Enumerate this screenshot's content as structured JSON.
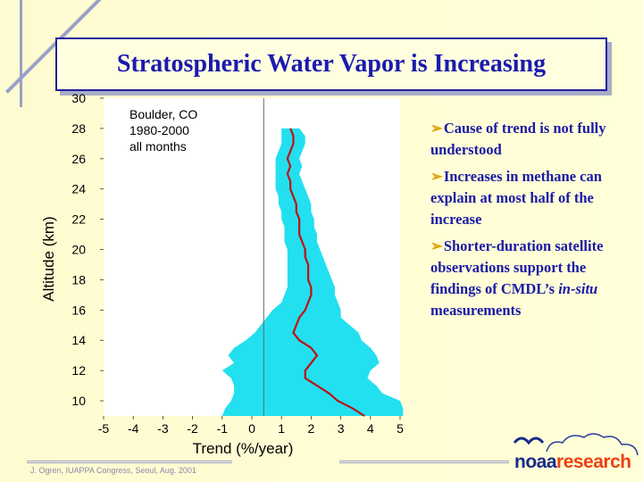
{
  "slide": {
    "title": "Stratospheric Water Vapor is Increasing",
    "footer": "J. Ogren, IUAPPA Congress, Seoul, Aug. 2001",
    "logo": {
      "noaa": "noaa",
      "research": "research"
    }
  },
  "bullets": [
    {
      "text": "Cause of trend is not fully understood"
    },
    {
      "text": "Increases in methane can explain at most half of the increase"
    },
    {
      "pre": "Shorter-duration satellite observations support the findings of CMDL’s ",
      "italic": "in-situ",
      "post": " measurements"
    }
  ],
  "colors": {
    "title": "#1a1ab0",
    "bullet_text": "#1a1aa8",
    "arrow": "#e0a000",
    "band": "#22e0f0",
    "trend_line": "#c01010"
  },
  "chart_data": {
    "type": "line",
    "annotation": [
      "Boulder, CO",
      "1980-2000",
      "all months"
    ],
    "xlabel": "Trend (%/year)",
    "ylabel": "Altitude (km)",
    "xlim": [
      -5,
      5
    ],
    "ylim": [
      9,
      30
    ],
    "x_ticks": [
      "-5",
      "-4",
      "-3",
      "-2",
      "-1",
      "0",
      "1",
      "2",
      "3",
      "4",
      "5"
    ],
    "y_ticks": [
      "10",
      "12",
      "14",
      "16",
      "18",
      "20",
      "22",
      "24",
      "26",
      "28",
      "30"
    ],
    "reference_line_x": 0.4,
    "series": [
      {
        "y": [
          28.0,
          27.5,
          27.0,
          26.5,
          26.0,
          25.5,
          25.0,
          24.5,
          24.0,
          23.5,
          23.0,
          22.5,
          22.0,
          21.5,
          21.0,
          20.5,
          20.0,
          19.5,
          19.0,
          18.5,
          18.0,
          17.5,
          17.0,
          16.5,
          16.0,
          15.5,
          15.0,
          14.5,
          14.0,
          13.5,
          13.0,
          12.5,
          12.0,
          11.5,
          11.0,
          10.5,
          10.0,
          9.5,
          9.0
        ],
        "center": [
          1.3,
          1.4,
          1.4,
          1.3,
          1.2,
          1.3,
          1.2,
          1.3,
          1.3,
          1.4,
          1.5,
          1.5,
          1.6,
          1.6,
          1.6,
          1.7,
          1.8,
          1.8,
          1.9,
          1.9,
          1.9,
          2.0,
          2.0,
          1.9,
          1.8,
          1.6,
          1.5,
          1.4,
          1.6,
          2.0,
          2.2,
          2.0,
          1.8,
          1.8,
          2.2,
          2.6,
          2.9,
          3.4,
          3.8
        ],
        "lower": [
          1.0,
          1.0,
          1.0,
          0.9,
          0.8,
          0.8,
          0.8,
          0.8,
          0.8,
          0.9,
          0.9,
          1.0,
          1.0,
          1.1,
          1.1,
          1.1,
          1.2,
          1.2,
          1.2,
          1.2,
          1.2,
          1.2,
          1.1,
          1.0,
          0.7,
          0.5,
          0.3,
          0.1,
          -0.2,
          -0.6,
          -0.8,
          -0.6,
          -1.0,
          -0.7,
          -0.6,
          -0.6,
          -0.7,
          -0.9,
          -1.0
        ],
        "upper": [
          1.6,
          1.8,
          1.8,
          1.7,
          1.6,
          1.7,
          1.6,
          1.7,
          1.8,
          1.9,
          2.0,
          2.0,
          2.1,
          2.1,
          2.2,
          2.2,
          2.3,
          2.4,
          2.5,
          2.6,
          2.7,
          2.8,
          2.8,
          2.9,
          3.0,
          3.0,
          3.3,
          3.6,
          3.7,
          4.0,
          4.2,
          4.3,
          4.0,
          3.9,
          4.2,
          4.4,
          5.0,
          5.1,
          5.1
        ]
      }
    ]
  }
}
